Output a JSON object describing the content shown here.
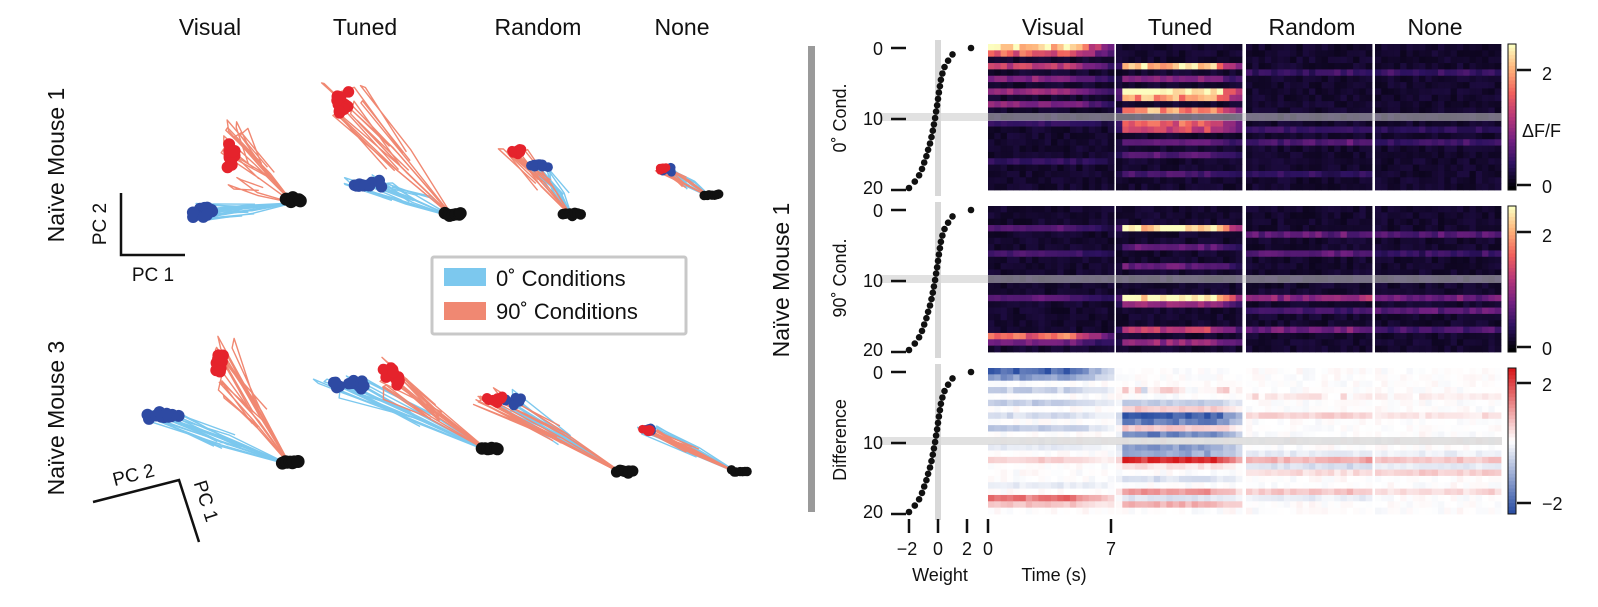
{
  "condition_labels": [
    "Visual",
    "Tuned",
    "Random",
    "None"
  ],
  "left_panel": {
    "row_labels": [
      "Naïve Mouse 1",
      "Naïve Mouse 3"
    ],
    "axes_top": {
      "x": "PC 1",
      "y": "PC 2"
    },
    "axes_bottom": {
      "a": "PC 2",
      "b": "PC 1"
    },
    "legend": [
      {
        "label": "0˚ Conditions",
        "color": "#7cc8ee"
      },
      {
        "label": "90˚ Conditions",
        "color": "#f08872"
      }
    ]
  },
  "right_panel": {
    "mouse_label": "Naïve Mouse 1",
    "row_labels": [
      "0˚ Cond.",
      "90˚ Cond.",
      "Difference"
    ],
    "weight_ticks": [
      "−2",
      "0",
      "2"
    ],
    "weight_label": "Weight",
    "neuron_ticks": [
      "0",
      "10",
      "20"
    ],
    "time_ticks": [
      "0",
      "7"
    ],
    "time_label": "Time (s)",
    "colorbar_activity": {
      "label": "ΔF/F",
      "ticks": [
        "2",
        "0"
      ],
      "max": 2.5
    },
    "colorbar_difference": {
      "ticks": [
        "2",
        "−2"
      ],
      "range": [
        -2.5,
        2.5
      ]
    }
  },
  "colors": {
    "blue_line": "#7cc8ee",
    "red_line": "#f08872",
    "blue_dot": "#2e4aa3",
    "red_dot": "#e5232c",
    "black_dot": "#111111",
    "heat_stops": [
      "#000004",
      "#2c115f",
      "#721f81",
      "#b73779",
      "#f1605d",
      "#feb078",
      "#fcfdbf"
    ],
    "diff_stops": [
      "#d7191c",
      "#ffffff",
      "#2c4fa3"
    ]
  },
  "chart_data": [
    {
      "type": "scatter",
      "description_kind": "pca-trajectories",
      "rows": [
        "Naïve Mouse 1",
        "Naïve Mouse 3"
      ],
      "columns": [
        "Visual",
        "Tuned",
        "Random",
        "None"
      ],
      "series": [
        {
          "name": "0˚ Conditions"
        },
        {
          "name": "90˚ Conditions"
        }
      ]
    },
    {
      "type": "scatter",
      "panel": "weights",
      "xlabel": "Weight",
      "xlim": [
        -2,
        2
      ],
      "ylim": [
        0,
        20
      ],
      "weights": [
        -2.0,
        -1.6,
        -1.3,
        -1.1,
        -0.95,
        -0.8,
        -0.68,
        -0.55,
        -0.45,
        -0.36,
        -0.28,
        -0.2,
        -0.13,
        -0.06,
        0.0,
        0.06,
        0.13,
        0.2,
        0.3,
        0.45,
        0.7,
        1.0,
        1.5
      ]
    },
    {
      "type": "heatmap",
      "rows": [
        "0˚ Cond.",
        "90˚ Cond.",
        "Difference"
      ],
      "columns": [
        "Visual",
        "Tuned",
        "Random",
        "None"
      ],
      "xlabel": "Time (s)",
      "xlim": [
        0,
        7
      ],
      "ylim": [
        0,
        20
      ],
      "zlabel": "ΔF/F",
      "note": "23 neurons x 20 time bins per panel"
    }
  ]
}
